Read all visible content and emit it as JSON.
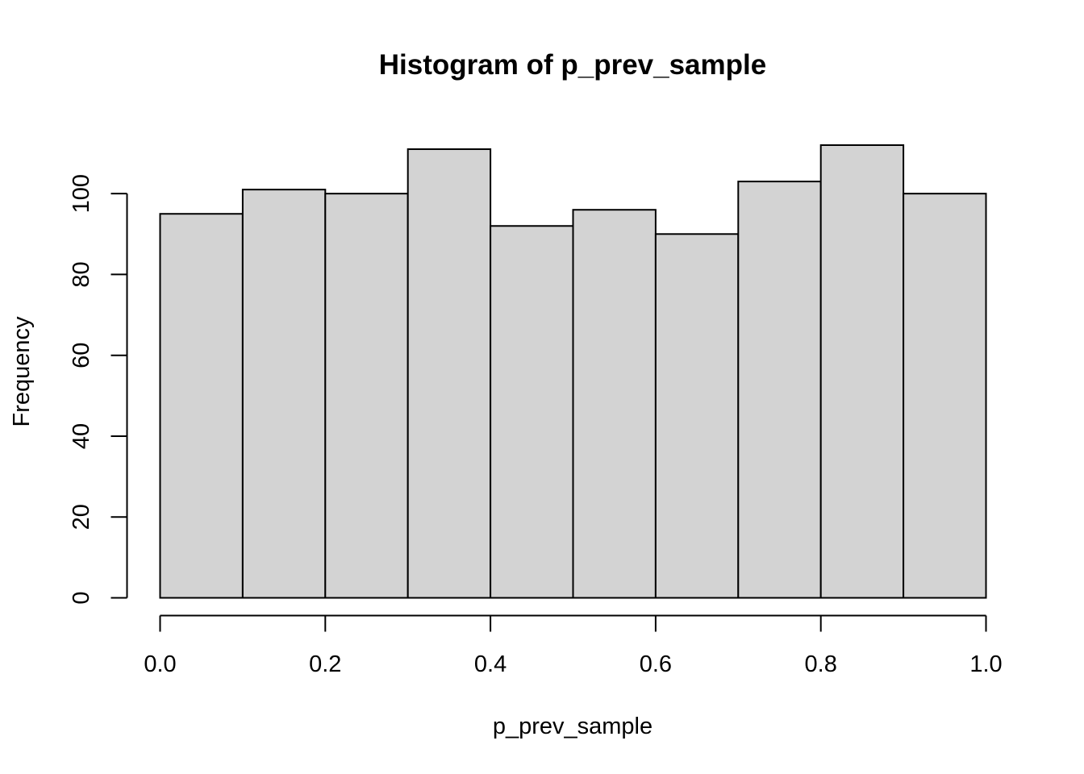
{
  "chart_data": {
    "type": "bar",
    "title": "Histogram of p_prev_sample",
    "xlabel": "p_prev_sample",
    "ylabel": "Frequency",
    "bins": [
      {
        "start": 0.0,
        "end": 0.1,
        "count": 95
      },
      {
        "start": 0.1,
        "end": 0.2,
        "count": 101
      },
      {
        "start": 0.2,
        "end": 0.3,
        "count": 100
      },
      {
        "start": 0.3,
        "end": 0.4,
        "count": 111
      },
      {
        "start": 0.4,
        "end": 0.5,
        "count": 92
      },
      {
        "start": 0.5,
        "end": 0.6,
        "count": 96
      },
      {
        "start": 0.6,
        "end": 0.7,
        "count": 90
      },
      {
        "start": 0.7,
        "end": 0.8,
        "count": 103
      },
      {
        "start": 0.8,
        "end": 0.9,
        "count": 112
      },
      {
        "start": 0.9,
        "end": 1.0,
        "count": 100
      }
    ],
    "xlim": [
      0.0,
      1.0
    ],
    "ylim": [
      0,
      112
    ],
    "x_ticks": [
      0.0,
      0.2,
      0.4,
      0.6,
      0.8,
      1.0
    ],
    "x_tick_labels": [
      "0.0",
      "0.2",
      "0.4",
      "0.6",
      "0.8",
      "1.0"
    ],
    "y_ticks": [
      0,
      20,
      40,
      60,
      80,
      100
    ],
    "y_tick_labels": [
      "0",
      "20",
      "40",
      "60",
      "80",
      "100"
    ],
    "bar_fill": "#d3d3d3",
    "bar_stroke": "#000000",
    "grid": false,
    "legend": "none"
  }
}
